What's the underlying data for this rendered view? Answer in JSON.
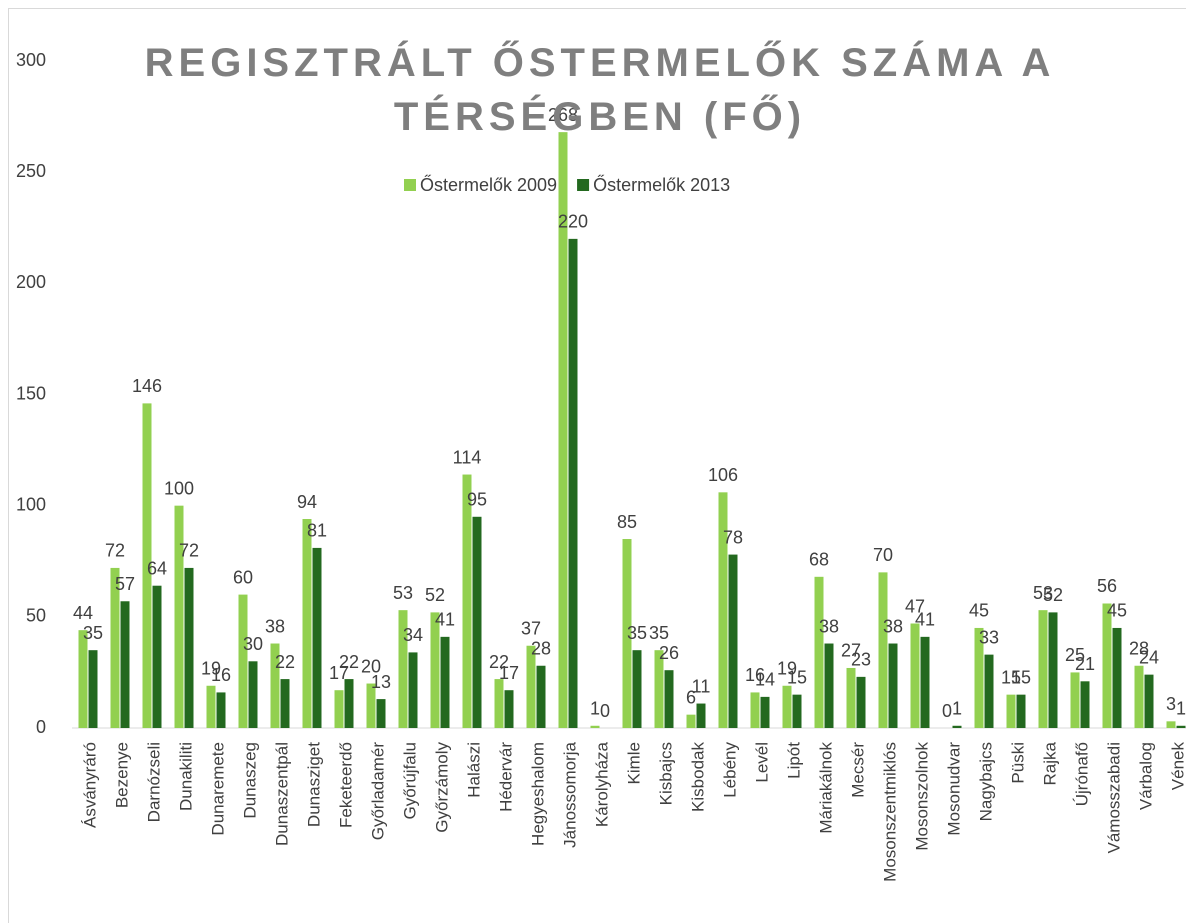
{
  "chart_data": {
    "type": "bar",
    "title": "REGISZTRÁLT ŐSTERMELŐK SZÁMA A TÉRSÉGBEN (FŐ)",
    "categories": [
      "Ásványráró",
      "Bezenye",
      "Darnózseli",
      "Dunakiliti",
      "Dunaremete",
      "Dunaszeg",
      "Dunaszentpál",
      "Dunasziget",
      "Feketeerdő",
      "Győrladamér",
      "Győrújfalu",
      "Győrzámoly",
      "Halászi",
      "Hédervár",
      "Hegyeshalom",
      "Jánossomorja",
      "Károlyháza",
      "Kimle",
      "Kisbajcs",
      "Kisbodak",
      "Lébény",
      "Levél",
      "Lipót",
      "Máriakálnok",
      "Mecsér",
      "Mosonszentmiklós",
      "Mosonszolnok",
      "Mosonudvar",
      "Nagybajcs",
      "Püski",
      "Rajka",
      "Újrónafő",
      "Vámosszabadi",
      "Várbalog",
      "Vének"
    ],
    "series": [
      {
        "name": "Őstermelők 2009",
        "color": "#92d050",
        "values": [
          44,
          72,
          146,
          100,
          19,
          60,
          38,
          94,
          17,
          20,
          53,
          52,
          114,
          22,
          37,
          268,
          1,
          85,
          35,
          6,
          106,
          16,
          19,
          68,
          27,
          70,
          47,
          0,
          45,
          15,
          53,
          25,
          56,
          28,
          3
        ]
      },
      {
        "name": "Őstermelők 2013",
        "color": "#23691f",
        "values": [
          35,
          57,
          64,
          72,
          16,
          30,
          22,
          81,
          22,
          13,
          34,
          41,
          95,
          17,
          28,
          220,
          0,
          35,
          26,
          11,
          78,
          14,
          15,
          38,
          23,
          38,
          41,
          1,
          33,
          15,
          52,
          21,
          45,
          24,
          1
        ]
      }
    ],
    "ylim": [
      0,
      300
    ],
    "yticks": [
      0,
      50,
      100,
      150,
      200,
      250,
      300
    ],
    "grid": false,
    "legend": "top"
  }
}
